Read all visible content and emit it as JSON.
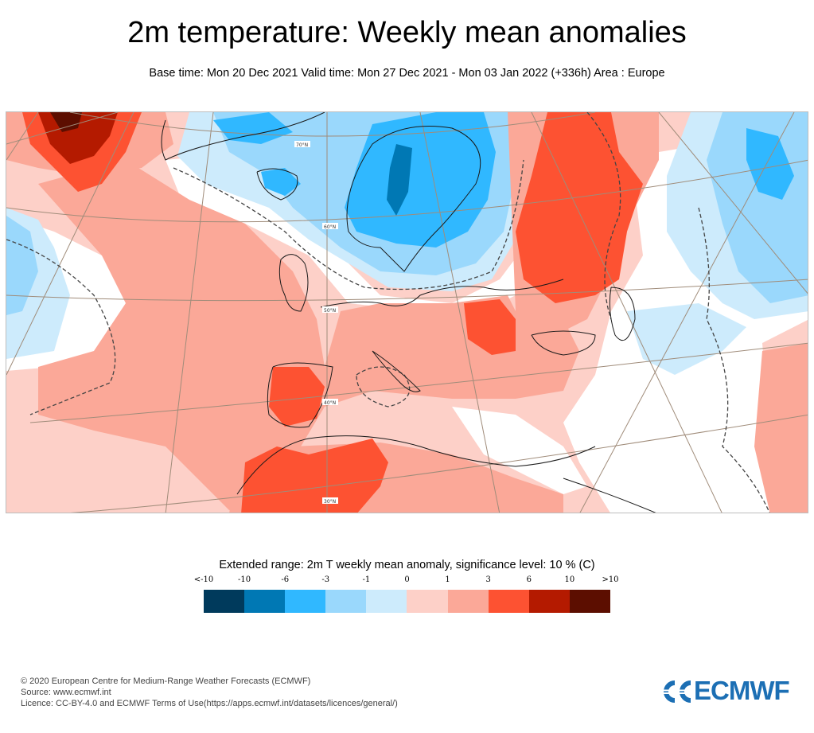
{
  "header": {
    "title": "2m temperature: Weekly mean anomalies",
    "subtitle": "Base time: Mon 20 Dec 2021 Valid time: Mon 27 Dec 2021 - Mon 03 Jan 2022 (+336h) Area : Europe"
  },
  "map": {
    "area": "Europe",
    "latitude_labels": [
      "70°N",
      "60°N",
      "50°N",
      "40°N",
      "30°N"
    ],
    "colors": {
      "lt_m10": "#003a5c",
      "m10_m6": "#0078b4",
      "m6_m3": "#30b8ff",
      "m3_m1": "#9ad8fc",
      "m1_0": "#cdebfc",
      "zero_1": "#fdd0c8",
      "one_3": "#fba898",
      "three_6": "#fd5232",
      "six_10": "#b41a00",
      "gt_10": "#5c0e00",
      "neutral": "#ffffff",
      "coast": "#1a1a1a",
      "border": "#555555",
      "grid": "#a08c7a"
    }
  },
  "legend": {
    "title": "Extended range: 2m T weekly mean anomaly, significance level: 10 % (C)",
    "labels": [
      "<-10",
      "-10",
      "-6",
      "-3",
      "-1",
      "0",
      "1",
      "3",
      "6",
      "10",
      ">10"
    ],
    "colors": [
      "#003a5c",
      "#0078b4",
      "#30b8ff",
      "#9ad8fc",
      "#cdebfc",
      "#fdd0c8",
      "#fba898",
      "#fd5232",
      "#b41a00",
      "#5c0e00"
    ]
  },
  "footer": {
    "copyright": "© 2020 European Centre for Medium-Range Weather Forecasts (ECMWF)",
    "source": "Source: www.ecmwf.int",
    "licence": "Licence: CC-BY-4.0 and ECMWF Terms of Use(https://apps.ecmwf.int/datasets/licences/general/)"
  },
  "logo": {
    "text": "ECMWF"
  }
}
